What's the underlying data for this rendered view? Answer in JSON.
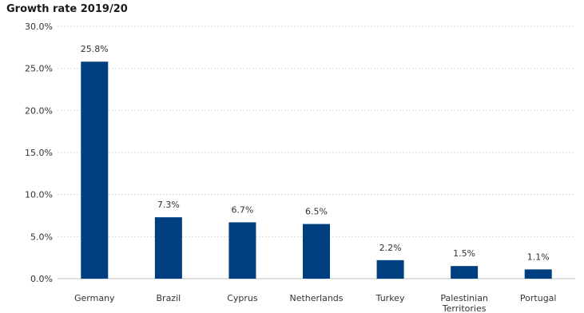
{
  "chart_data": {
    "type": "bar",
    "title": "Growth rate 2019/20",
    "categories": [
      "Germany",
      "Brazil",
      "Cyprus",
      "Netherlands",
      "Turkey",
      "Palestinian Territories",
      "Portugal"
    ],
    "category_lines": [
      [
        "Germany"
      ],
      [
        "Brazil"
      ],
      [
        "Cyprus"
      ],
      [
        "Netherlands"
      ],
      [
        "Turkey"
      ],
      [
        "Palestinian",
        "Territories"
      ],
      [
        "Portugal"
      ]
    ],
    "values": [
      25.8,
      7.3,
      6.7,
      6.5,
      2.2,
      1.5,
      1.1
    ],
    "data_labels": [
      "25.8%",
      "7.3%",
      "6.7%",
      "6.5%",
      "2.2%",
      "1.5%",
      "1.1%"
    ],
    "yticks": [
      0,
      5,
      10,
      15,
      20,
      25,
      30
    ],
    "ytick_labels": [
      "0.0%",
      "5.0%",
      "10.0%",
      "15.0%",
      "20.0%",
      "25.0%",
      "30.0%"
    ],
    "ylim": [
      0,
      30
    ],
    "xlabel": "",
    "ylabel": "",
    "grid": true,
    "bar_color": "#003f7f",
    "grid_color": "#d9d9d9"
  }
}
